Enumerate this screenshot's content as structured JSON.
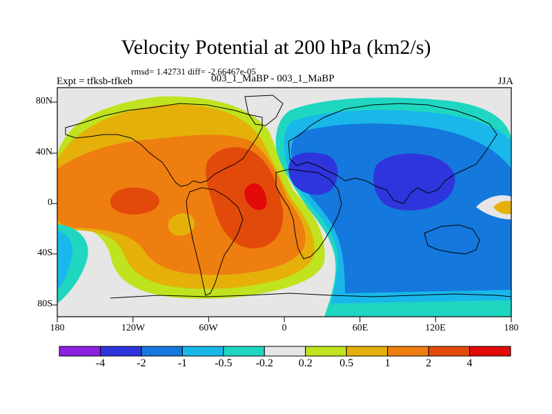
{
  "title": "Velocity Potential at 200 hPa (km2/s)",
  "stats": "rmsd= 1.42731 diff= -2.66467e-05",
  "expt": "Expt = tfksb-tfkeb",
  "cases": "003_1_MaBP - 003_1_MaBP",
  "season": "JJA",
  "axes": {
    "x_ticks": [
      "180",
      "120W",
      "60W",
      "0",
      "60E",
      "120E",
      "180"
    ],
    "y_ticks": [
      "80N",
      "40N",
      "0",
      "40S",
      "80S"
    ]
  },
  "colorbar": {
    "labels": [
      "-4",
      "-2",
      "-1",
      "-0.5",
      "-0.2",
      "0.2",
      "0.5",
      "1",
      "2",
      "4"
    ],
    "colors": [
      "#8a1fe0",
      "#2f35dc",
      "#1478dc",
      "#19b7ea",
      "#1fd6c1",
      "#e6e6e6",
      "#bfe31f",
      "#e6b00a",
      "#ee7e10",
      "#e24a0b",
      "#e30a0a"
    ]
  }
}
